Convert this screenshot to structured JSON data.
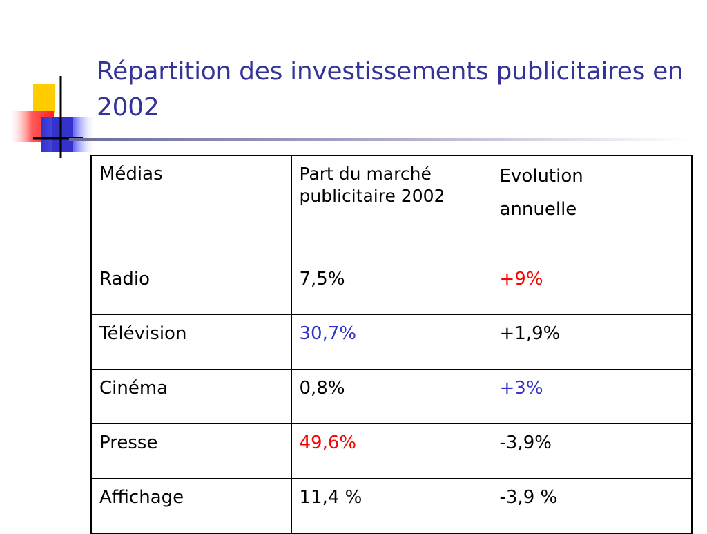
{
  "slide": {
    "title": "Répartition des investissements publicitaires en 2002"
  },
  "table": {
    "headers": {
      "medias": "Médias",
      "part": "Part du marché publicitaire 2002",
      "evolution_line1": "Evolution",
      "evolution_line2": "annuelle"
    },
    "rows": [
      {
        "media": "Radio",
        "part": "7,5%",
        "evolution": "+9%"
      },
      {
        "media": "Télévision",
        "part": "30,7%",
        "evolution": "+1,9%"
      },
      {
        "media": "Cinéma",
        "part": "0,8%",
        "evolution": "+3%"
      },
      {
        "media": "Presse",
        "part": "49,6%",
        "evolution": "-3,9%"
      },
      {
        "media": "Affichage",
        "part": "11,4 %",
        "evolution": "-3,9 %"
      }
    ]
  },
  "colors": {
    "title": "#333399",
    "highlight_red": "#ff0000",
    "highlight_blue": "#3333cc",
    "logo_yellow": "#ffcc00",
    "logo_red": "#ff3333",
    "logo_blue": "#3333cc"
  }
}
